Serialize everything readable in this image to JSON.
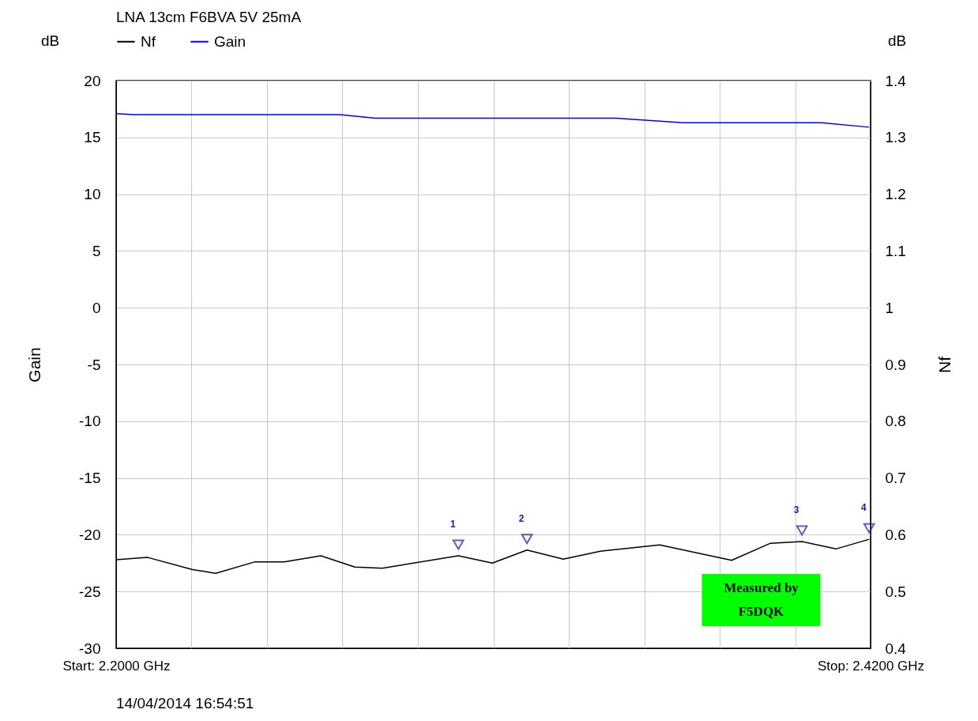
{
  "chart_data": {
    "type": "line",
    "title": "LNA 13cm F6BVA 5V 25mA",
    "ylabel": "Gain",
    "y2label": "Nf",
    "xlim": [
      2.2,
      2.42
    ],
    "xticks": [
      {
        "value": 2.2,
        "label": "Start: 2.2000 GHz"
      },
      {
        "value": 2.222,
        "label": null
      },
      {
        "value": 2.244,
        "label": null
      },
      {
        "value": 2.266,
        "label": null
      },
      {
        "value": 2.288,
        "label": null
      },
      {
        "value": 2.31,
        "label": null
      },
      {
        "value": 2.332,
        "label": null
      },
      {
        "value": 2.354,
        "label": null
      },
      {
        "value": 2.376,
        "label": null
      },
      {
        "value": 2.398,
        "label": null
      },
      {
        "value": 2.42,
        "label": "Stop: 2.4200 GHz"
      }
    ],
    "ylim": [
      -30,
      20
    ],
    "yticks": [
      -30,
      -25,
      -20,
      -15,
      -10,
      -5,
      0,
      5,
      10,
      15,
      20
    ],
    "y2lim": [
      0.4,
      1.4
    ],
    "y2ticks": [
      0.4,
      0.5,
      0.6,
      0.7,
      0.8,
      0.9,
      1,
      1.1,
      1.2,
      1.3,
      1.4
    ],
    "grid": true,
    "legend": "top left",
    "series": [
      {
        "name": "Nf",
        "color": "#000000",
        "axis": "y2",
        "x": [
          2.2,
          2.2092,
          2.2221,
          2.229,
          2.2403,
          2.249,
          2.2597,
          2.2696,
          2.2776,
          2.2998,
          2.3097,
          2.3198,
          2.3304,
          2.3412,
          2.3585,
          2.3795,
          2.3908,
          2.4,
          2.4099,
          2.4196
        ],
        "values": [
          0.556,
          0.56,
          0.539,
          0.532,
          0.552,
          0.552,
          0.563,
          0.543,
          0.541,
          0.563,
          0.55,
          0.573,
          0.557,
          0.571,
          0.582,
          0.555,
          0.585,
          0.588,
          0.575,
          0.592
        ]
      },
      {
        "name": "Gain",
        "color": "#0000ff",
        "x": [
          2.2,
          2.2053,
          2.2652,
          2.2756,
          2.3458,
          2.3551,
          2.3654,
          2.4057,
          2.4196
        ],
        "values": [
          17.1,
          17.0,
          17.0,
          16.7,
          16.7,
          16.5,
          16.3,
          16.3,
          15.9
        ]
      }
    ],
    "annotations": [
      "dB",
      "dB",
      "14/04/2014 16:54:51",
      "Measured by\nF5DQK",
      "1",
      "2",
      "3",
      "4"
    ]
  }
}
